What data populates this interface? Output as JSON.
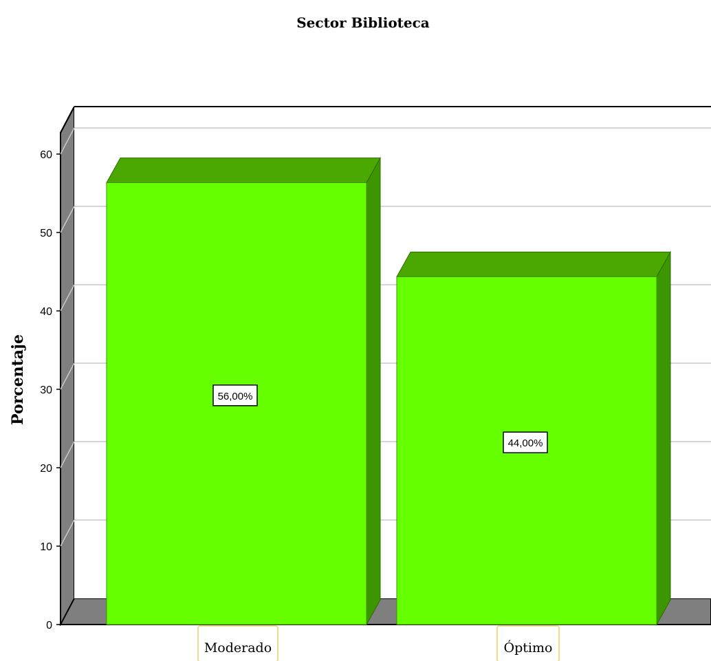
{
  "chart_data": {
    "type": "bar",
    "title": "Sector Biblioteca",
    "ylabel": "Porcentaje",
    "xlabel": "",
    "categories": [
      "Moderado",
      "Óptimo"
    ],
    "values": [
      56,
      44
    ],
    "data_labels": [
      "56,00%",
      "44,00%"
    ],
    "ylim": [
      0,
      60
    ],
    "yticks": [
      0,
      10,
      20,
      30,
      40,
      50,
      60
    ],
    "grid": true,
    "three_d": true,
    "colors": {
      "bar_front": "#66ff00",
      "bar_top": "#4aa800",
      "bar_side": "#3c9600",
      "wall": "#7f7f7f",
      "floor": "#7f7f7f",
      "grid": "#c8c8c8",
      "category_label_border": "#f5d98a"
    }
  }
}
